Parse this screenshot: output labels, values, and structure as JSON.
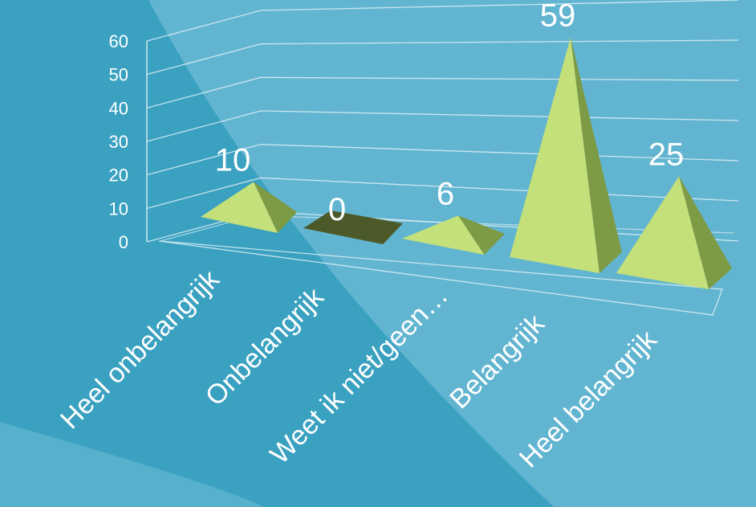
{
  "colors": {
    "background_dark": "#3aa1c0",
    "background_light": "#62b5d0",
    "pyramid_light": "#c3e07a",
    "pyramid_mid": "#a9cc62",
    "pyramid_dark": "#7d9a45",
    "zero_base": "#4c5a2a",
    "text": "#ffffff",
    "grid": "#e6f3f8"
  },
  "chart_data": {
    "type": "bar",
    "style": "3d-pyramid",
    "categories": [
      "Heel onbelangrijk",
      "Onbelangrijk",
      "Weet ik niet/geen…",
      "Belangrijk",
      "Heel belangrijk"
    ],
    "values": [
      10,
      0,
      6,
      59,
      25
    ],
    "data_labels": [
      "10",
      "0",
      "6",
      "59",
      "25"
    ],
    "ylim": [
      0,
      60
    ],
    "y_ticks": [
      "0",
      "10",
      "20",
      "30",
      "40",
      "50",
      "60"
    ],
    "title": "",
    "xlabel": "",
    "ylabel": "",
    "grid": true,
    "legend": false
  }
}
